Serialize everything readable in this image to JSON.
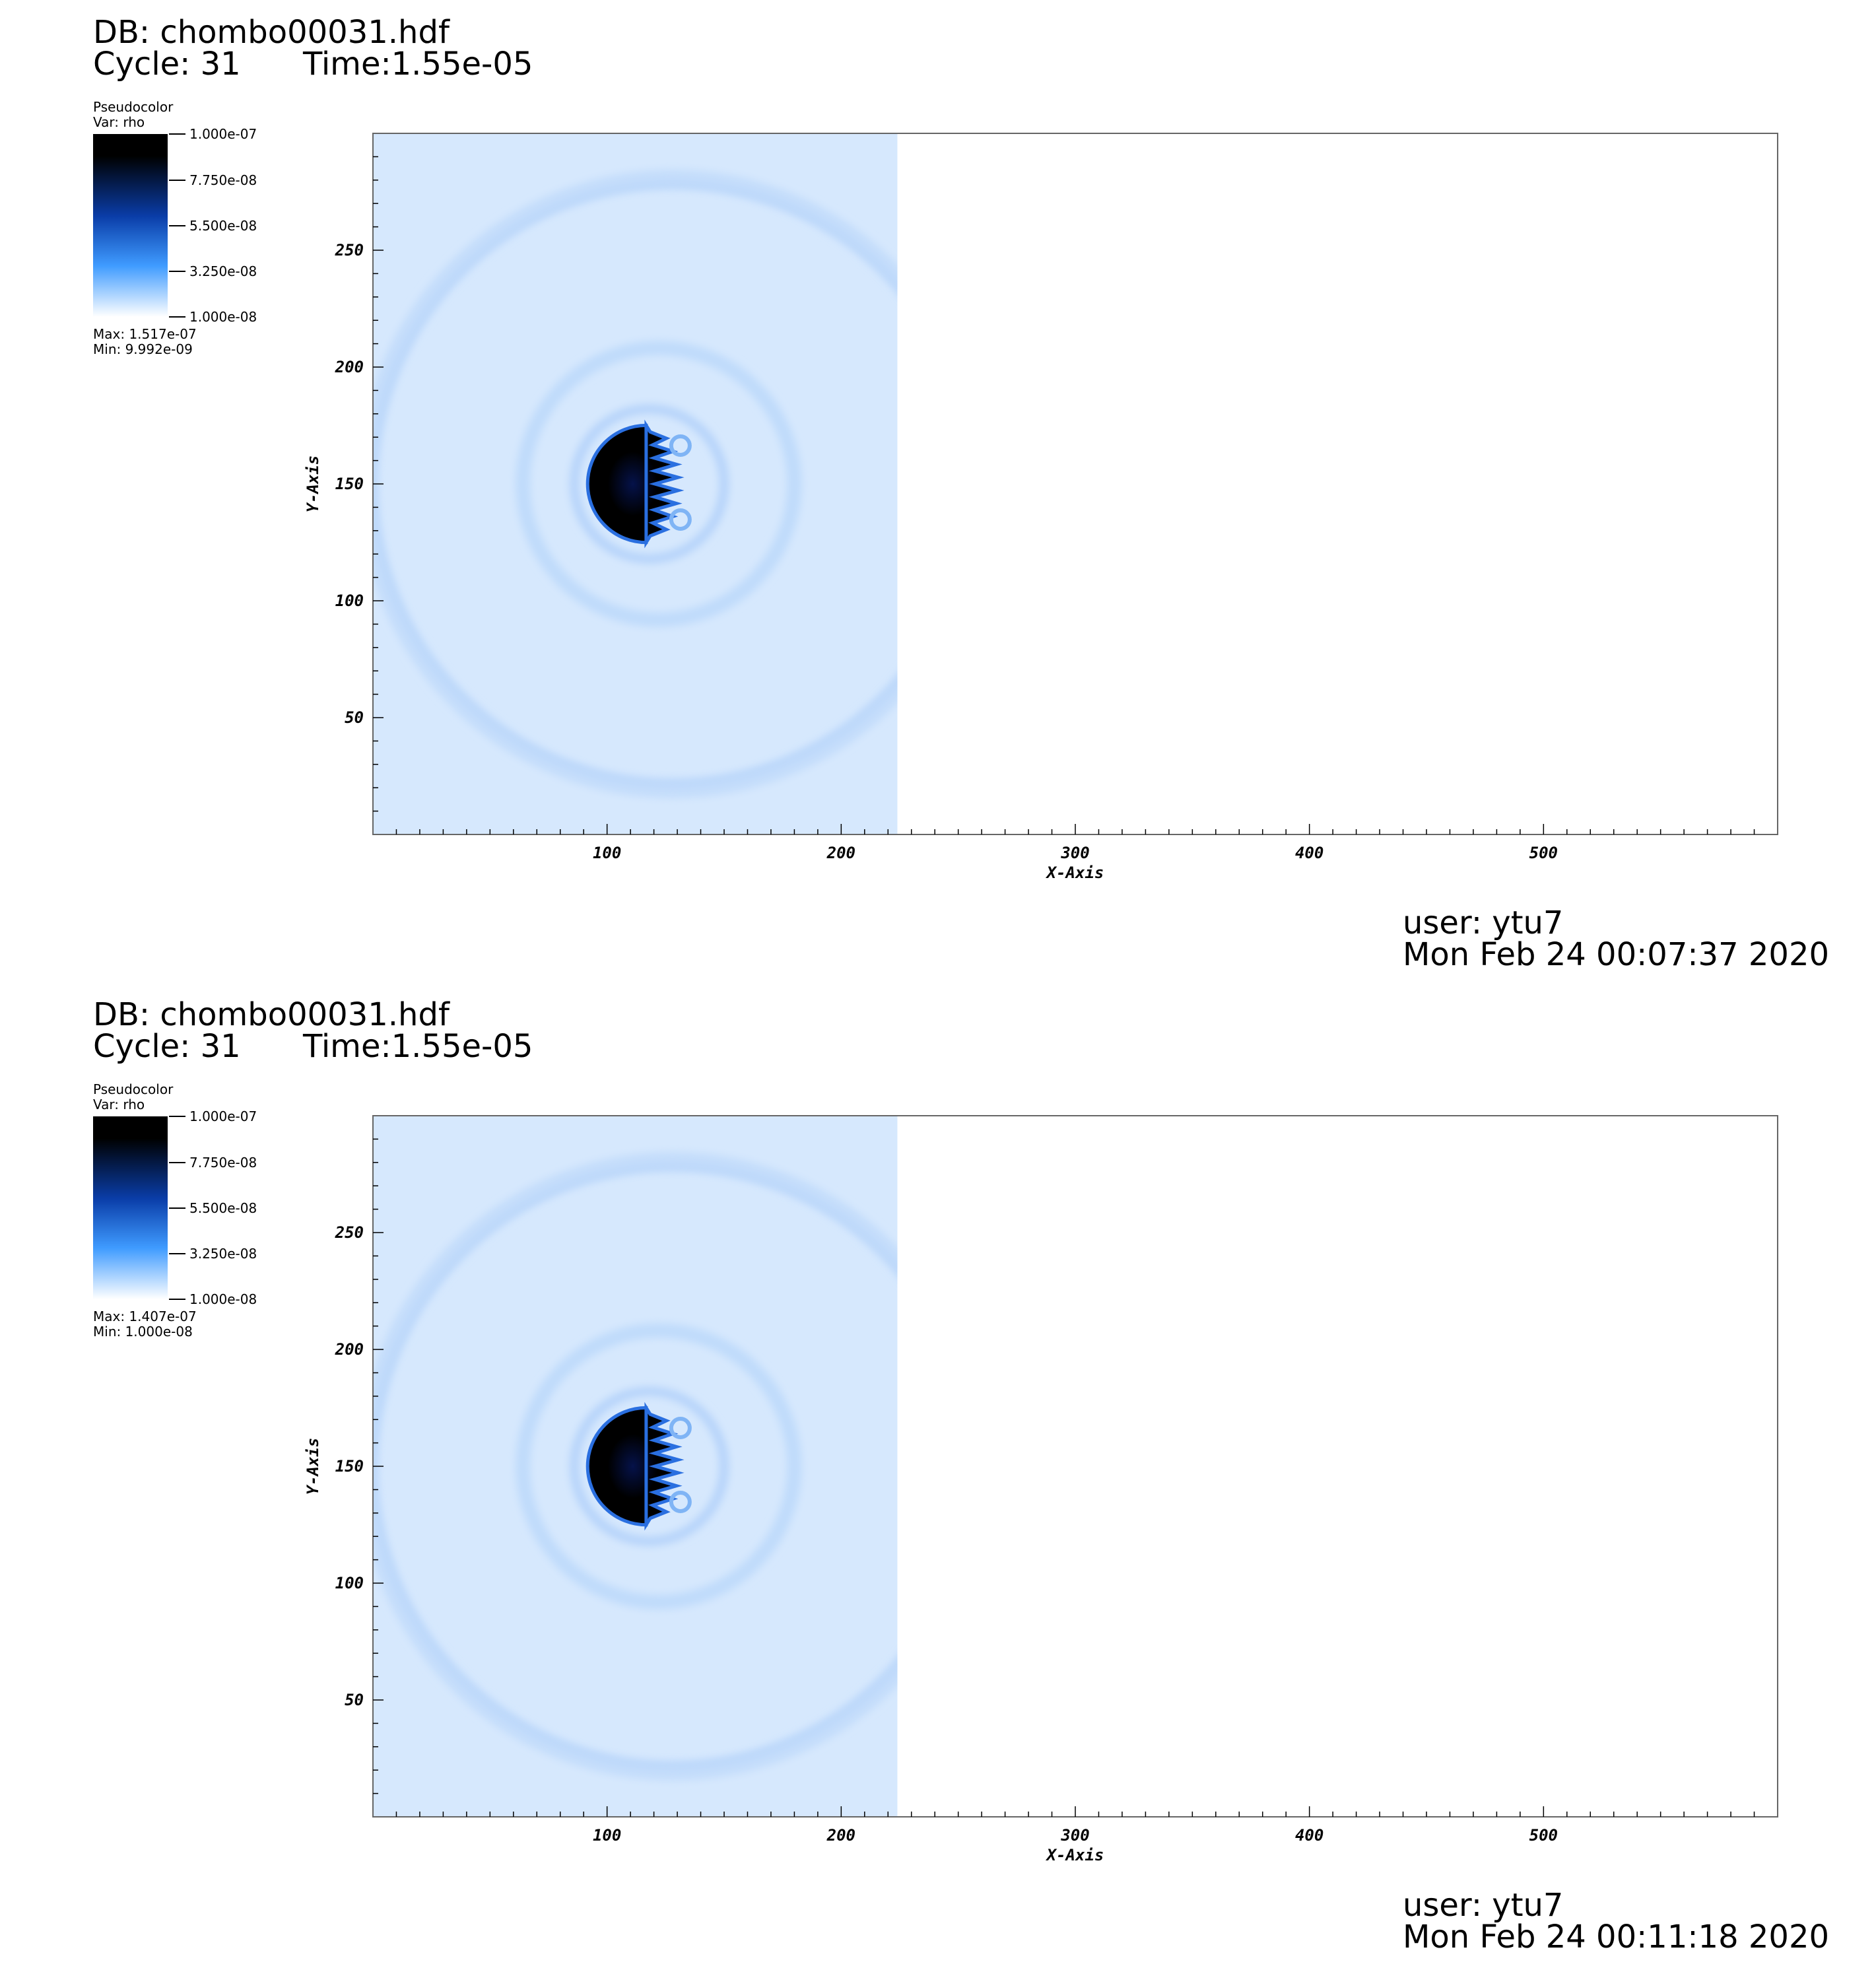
{
  "panels": [
    {
      "db": "DB: chombo00031.hdf",
      "cycle": "Cycle: 31",
      "time": "Time:1.55e-05",
      "legend": {
        "plot_type": "Pseudocolor",
        "var": "Var: rho",
        "ticks": [
          "1.000e-07",
          "7.750e-08",
          "5.500e-08",
          "3.250e-08",
          "1.000e-08"
        ],
        "max": "Max:  1.517e-07",
        "min": "Min:  9.992e-09"
      },
      "user": "user: ytu7",
      "date": "Mon Feb 24 00:07:37 2020"
    },
    {
      "db": "DB: chombo00031.hdf",
      "cycle": "Cycle: 31",
      "time": "Time:1.55e-05",
      "legend": {
        "plot_type": "Pseudocolor",
        "var": "Var: rho",
        "ticks": [
          "1.000e-07",
          "7.750e-08",
          "5.500e-08",
          "3.250e-08",
          "1.000e-08"
        ],
        "max": "Max:  1.407e-07",
        "min": "Min:  1.000e-08"
      },
      "user": "user: ytu7",
      "date": "Mon Feb 24 00:11:18 2020"
    }
  ],
  "chart_data": [
    {
      "type": "heatmap",
      "variable": "rho",
      "xlabel": "X-Axis",
      "ylabel": "Y-Axis",
      "xlim": [
        0,
        600
      ],
      "ylim": [
        0,
        300
      ],
      "xticks": [
        100,
        200,
        300,
        400,
        500
      ],
      "yticks": [
        50,
        100,
        150,
        200,
        250
      ],
      "color_range": [
        1e-08,
        1e-07
      ],
      "data_max": 1.517e-07,
      "data_min": 9.992e-09,
      "filled_region_x": [
        0,
        224
      ],
      "dense_core_center": [
        115,
        150
      ]
    },
    {
      "type": "heatmap",
      "variable": "rho",
      "xlabel": "X-Axis",
      "ylabel": "Y-Axis",
      "xlim": [
        0,
        600
      ],
      "ylim": [
        0,
        300
      ],
      "xticks": [
        100,
        200,
        300,
        400,
        500
      ],
      "yticks": [
        50,
        100,
        150,
        200,
        250
      ],
      "color_range": [
        1e-08,
        1e-07
      ],
      "data_max": 1.407e-07,
      "data_min": 1e-08,
      "filled_region_x": [
        0,
        224
      ],
      "dense_core_center": [
        115,
        150
      ]
    }
  ],
  "colors": {
    "background_fluid": "#d6e8fd",
    "shell": "#c4ddfb",
    "core": "#000000",
    "colorbar_top": "#000000",
    "colorbar_mid": "#0a3da8",
    "colorbar_low": "#3f9bff",
    "colorbar_bottom": "#ffffff"
  }
}
